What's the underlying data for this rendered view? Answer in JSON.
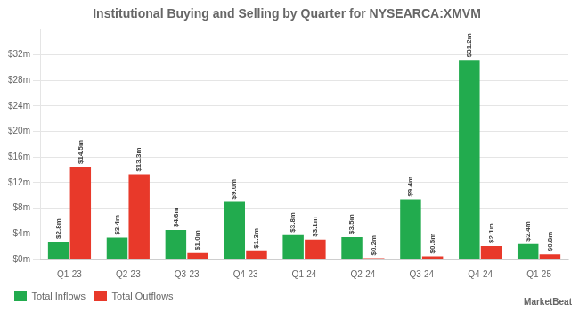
{
  "chart_data": {
    "type": "bar",
    "title": "Institutional Buying and Selling by Quarter for NYSEARCA:XMVM",
    "categories": [
      "Q1-23",
      "Q2-23",
      "Q3-23",
      "Q4-23",
      "Q1-24",
      "Q2-24",
      "Q3-24",
      "Q4-24",
      "Q1-25"
    ],
    "series": [
      {
        "name": "Total Inflows",
        "color": "#22ab4e",
        "values": [
          2.8,
          3.4,
          4.6,
          9.0,
          3.8,
          3.5,
          9.4,
          31.2,
          2.4
        ],
        "value_labels": [
          "$2.8m",
          "$3.4m",
          "$4.6m",
          "$9.0m",
          "$3.8m",
          "$3.5m",
          "$9.4m",
          "$31.2m",
          "$2.4m"
        ]
      },
      {
        "name": "Total Outflows",
        "color": "#e8392a",
        "values": [
          14.5,
          13.3,
          1.0,
          1.3,
          3.1,
          0.2,
          0.5,
          2.1,
          0.8
        ],
        "value_labels": [
          "$14.5m",
          "$13.3m",
          "$1.0m",
          "$1.3m",
          "$3.1m",
          "$0.2m",
          "$0.5m",
          "$2.1m",
          "$0.8m"
        ]
      }
    ],
    "ylim": [
      0,
      36
    ],
    "yticks": [
      {
        "value": 0,
        "label": "$0m"
      },
      {
        "value": 4,
        "label": "$4m"
      },
      {
        "value": 8,
        "label": "$8m"
      },
      {
        "value": 12,
        "label": "$12m"
      },
      {
        "value": 16,
        "label": "$16m"
      },
      {
        "value": 20,
        "label": "$20m"
      },
      {
        "value": 24,
        "label": "$24m"
      },
      {
        "value": 28,
        "label": "$28m"
      },
      {
        "value": 32,
        "label": "$32m"
      }
    ],
    "grid": true,
    "legend": "bottom",
    "data_labels": true,
    "annotations": [
      "MarketBeat"
    ]
  }
}
